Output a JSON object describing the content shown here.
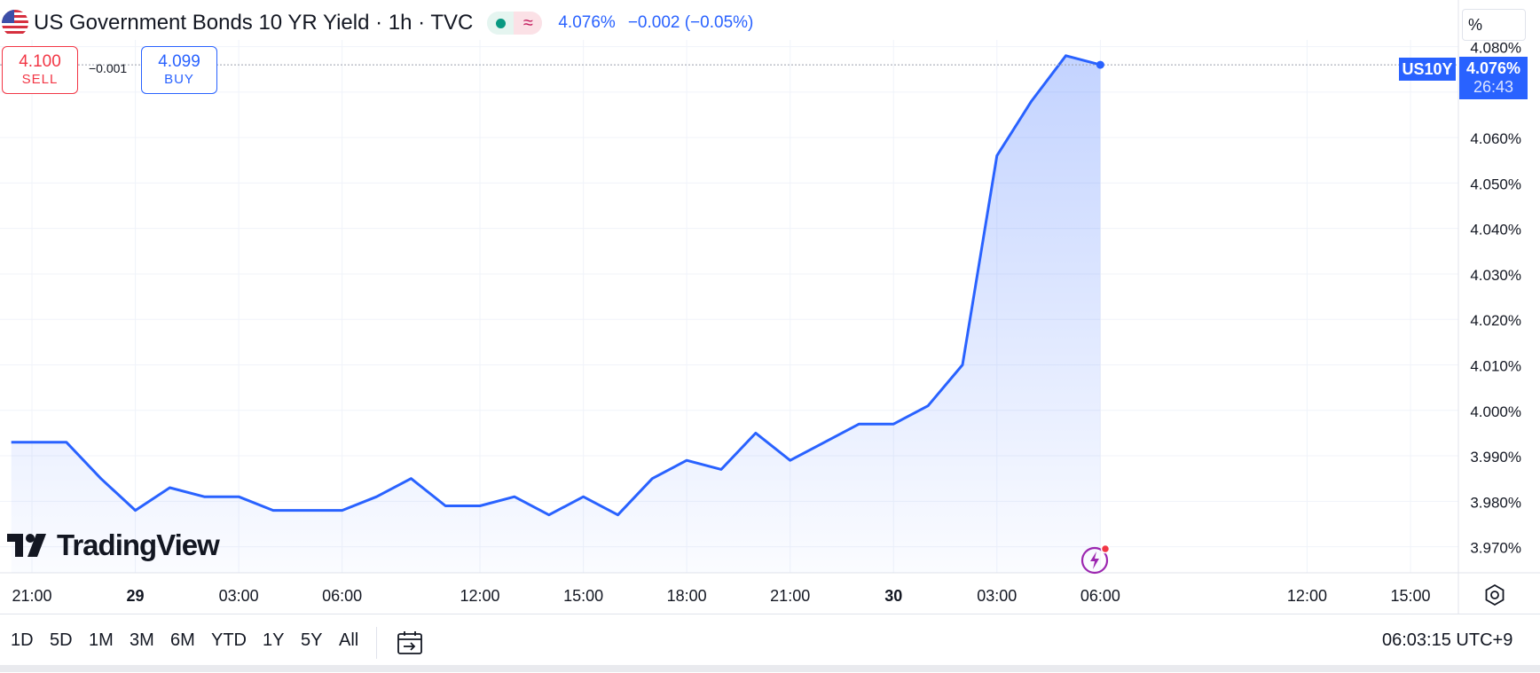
{
  "header": {
    "symbol_title": "US Government Bonds 10 YR Yield · 1h · TVC",
    "last_price": "4.076%",
    "change": "−0.002 (−0.05%)",
    "flag_icon": "us-flag-icon",
    "market_open_icon": "market-open-dot-icon",
    "delayed_icon": "delayed-data-icon",
    "delayed_glyph": "≈"
  },
  "trade": {
    "sell_price": "4.100",
    "sell_label": "SELL",
    "buy_price": "4.099",
    "buy_label": "BUY",
    "spread": "−0.001"
  },
  "scale_unit": "%",
  "price_axis_label": {
    "symbol": "US10Y",
    "price": "4.076%",
    "countdown": "26:43"
  },
  "logo": {
    "text": "TradingView",
    "icon": "tradingview-logo-icon"
  },
  "ranges": [
    "1D",
    "5D",
    "1M",
    "3M",
    "6M",
    "YTD",
    "1Y",
    "5Y",
    "All"
  ],
  "clock": "06:03:15 UTC+9",
  "icons": {
    "flash": "lightning-icon",
    "settings": "settings-gear-icon",
    "date_range": "go-to-date-icon"
  },
  "colors": {
    "line": "#2962ff",
    "sell": "#f23645",
    "buy": "#2962ff",
    "grid": "#f0f3fa"
  },
  "chart_data": {
    "type": "area",
    "x_tick_labels": [
      {
        "label": "21:00",
        "index": 0,
        "bold": false
      },
      {
        "label": "29",
        "index": 3,
        "bold": true
      },
      {
        "label": "03:00",
        "index": 6,
        "bold": false
      },
      {
        "label": "06:00",
        "index": 9,
        "bold": false
      },
      {
        "label": "12:00",
        "index": 13,
        "bold": false
      },
      {
        "label": "15:00",
        "index": 16,
        "bold": false
      },
      {
        "label": "18:00",
        "index": 19,
        "bold": false
      },
      {
        "label": "21:00",
        "index": 22,
        "bold": false
      },
      {
        "label": "30",
        "index": 25,
        "bold": true
      },
      {
        "label": "03:00",
        "index": 28,
        "bold": false
      },
      {
        "label": "06:00",
        "index": 31,
        "bold": false
      },
      {
        "label": "12:00",
        "index": 37,
        "bold": false
      },
      {
        "label": "15:00",
        "index": 40,
        "bold": false
      }
    ],
    "y_ticks": [
      3.97,
      3.98,
      3.99,
      4.0,
      4.01,
      4.02,
      4.03,
      4.04,
      4.05,
      4.06,
      4.07,
      4.08
    ],
    "y_tick_labels": [
      "3.970%",
      "3.980%",
      "3.990%",
      "4.000%",
      "4.010%",
      "4.020%",
      "4.030%",
      "4.040%",
      "4.050%",
      "4.060%",
      "4.070%",
      "4.080%"
    ],
    "ylim": [
      3.967,
      4.0805
    ],
    "x_index_range": [
      -0.9,
      43.3
    ],
    "series": [
      {
        "values": [
          3.993,
          3.993,
          3.985,
          3.978,
          3.983,
          3.981,
          3.981,
          3.978,
          3.978,
          3.978,
          3.981,
          3.985,
          3.979,
          3.979,
          3.981,
          3.977,
          3.981,
          3.977,
          3.985,
          3.989,
          3.987,
          3.995,
          3.989,
          3.993,
          3.997,
          3.997,
          4.001,
          4.01,
          4.056,
          4.068,
          4.078,
          4.076
        ]
      }
    ],
    "first_x_index": -0.6,
    "last_value": 4.076,
    "grid": true,
    "ylabel": "",
    "xlabel": ""
  }
}
